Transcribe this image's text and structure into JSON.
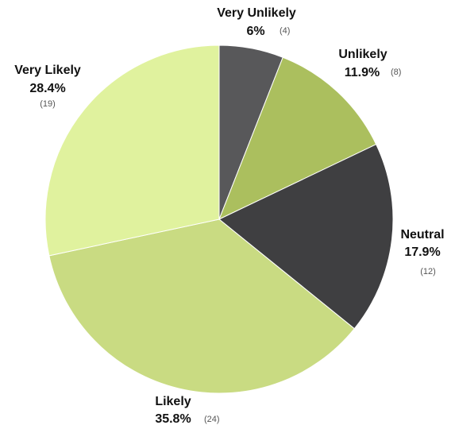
{
  "chart_data": {
    "type": "pie",
    "start_angle_deg": 0,
    "direction": "clockwise",
    "slices": [
      {
        "name": "Very Unlikely",
        "percent_label": "6%",
        "count_label": "(4)",
        "value": 4,
        "color": "#58585a"
      },
      {
        "name": "Unlikely",
        "percent_label": "11.9%",
        "count_label": "(8)",
        "value": 8,
        "color": "#abbf5e"
      },
      {
        "name": "Neutral",
        "percent_label": "17.9%",
        "count_label": "(12)",
        "value": 12,
        "color": "#3f3f41"
      },
      {
        "name": "Likely",
        "percent_label": "35.8%",
        "count_label": "(24)",
        "value": 24,
        "color": "#c9db82"
      },
      {
        "name": "Very Likely",
        "percent_label": "28.4%",
        "count_label": "(19)",
        "value": 19,
        "color": "#e0f29e"
      }
    ]
  }
}
